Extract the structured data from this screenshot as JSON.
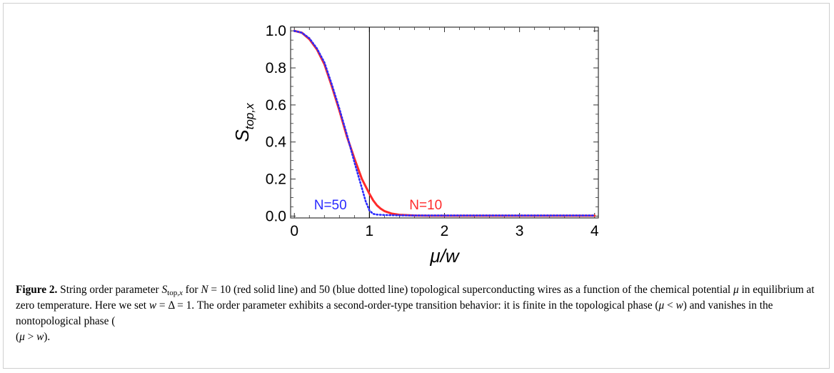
{
  "chart_data": {
    "type": "line",
    "title": "",
    "xlabel": "μ/w",
    "ylabel_main": "S",
    "ylabel_sub": "top,x",
    "xlim": [
      -0.05,
      4.05
    ],
    "ylim": [
      -0.01,
      1.02
    ],
    "xticks": [
      0,
      1,
      2,
      3,
      4
    ],
    "xtick_labels": [
      "0",
      "1",
      "2",
      "3",
      "4"
    ],
    "yticks": [
      0.0,
      0.2,
      0.4,
      0.6,
      0.8,
      1.0
    ],
    "ytick_labels": [
      "0.0",
      "0.2",
      "0.4",
      "0.6",
      "0.8",
      "1.0"
    ],
    "grid": false,
    "vline_x": 1,
    "series": [
      {
        "name": "N=10",
        "color": "#ff2a2a",
        "style": "solid",
        "x": [
          0,
          0.1,
          0.2,
          0.3,
          0.4,
          0.5,
          0.6,
          0.7,
          0.8,
          0.9,
          1.0,
          1.05,
          1.1,
          1.15,
          1.2,
          1.3,
          1.4,
          1.6,
          1.8,
          2.0,
          2.5,
          3.0,
          3.5,
          4.0
        ],
        "y": [
          1.0,
          0.99,
          0.955,
          0.9,
          0.82,
          0.7,
          0.57,
          0.43,
          0.31,
          0.2,
          0.12,
          0.085,
          0.058,
          0.04,
          0.027,
          0.013,
          0.007,
          0.003,
          0.002,
          0.002,
          0.002,
          0.002,
          0.002,
          0.002
        ]
      },
      {
        "name": "N=50",
        "color": "#2a2aff",
        "style": "dotted",
        "x": [
          0,
          0.1,
          0.2,
          0.3,
          0.4,
          0.5,
          0.6,
          0.7,
          0.8,
          0.9,
          0.95,
          1.0,
          1.05,
          1.1,
          1.2,
          1.4,
          1.6,
          2.0,
          2.5,
          3.0,
          3.5,
          4.0
        ],
        "y": [
          1.0,
          0.99,
          0.96,
          0.905,
          0.83,
          0.71,
          0.58,
          0.44,
          0.29,
          0.15,
          0.08,
          0.03,
          0.012,
          0.008,
          0.006,
          0.004,
          0.003,
          0.003,
          0.003,
          0.003,
          0.003,
          0.003
        ]
      }
    ],
    "annotations": [
      {
        "text": "N=50",
        "x": 0.48,
        "y": 0.02,
        "color": "#2a2aff"
      },
      {
        "text": "N=10",
        "x": 1.75,
        "y": 0.02,
        "color": "#ff2a2a"
      }
    ]
  },
  "caption": {
    "label": "Figure 2.",
    "p1": " String order parameter ",
    "S": "S",
    "S_sub": "top,",
    "S_sub_x": "x",
    "p2": " for ",
    "N": "N",
    "eq10": " = 10 (red solid line) and 50 (blue dotted line) topological superconducting wires as a function of the chemical potential ",
    "mu": "μ",
    "p3": " in equilibrium at zero temperature. Here we set ",
    "w": "w",
    "p4": " = Δ = 1. The order parameter exhibits a second-order-type transition behavior: it is finite in the topological phase (",
    "mu2": "μ",
    "lt": " < ",
    "w2": "w",
    "p5": ") and vanishes in the nontopological phase (",
    "mu3": "μ",
    "gt": " > ",
    "w3": "w",
    "p6": ")."
  }
}
